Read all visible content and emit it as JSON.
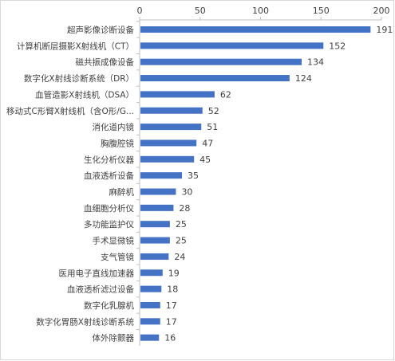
{
  "chart_data": {
    "type": "bar",
    "orientation": "horizontal",
    "title": "",
    "xlabel": "",
    "ylabel": "",
    "xlim": [
      0,
      200
    ],
    "x_ticks": [
      0,
      50,
      100,
      150,
      200
    ],
    "x_axis_position": "top",
    "grid": false,
    "legend": "none",
    "bar_color": "#4472c4",
    "data_labels": true,
    "categories": [
      "超声影像诊断设备",
      "计算机断层摄影X射线机（CT）",
      "磁共振成像设备",
      "数字化X射线诊断系统（DR）",
      "血管造影X射线机（DSA）",
      "移动式C形臂X射线机（含O形/G...",
      "消化道内镜",
      "胸腹腔镜",
      "生化分析仪器",
      "血液透析设备",
      "麻醉机",
      "血细胞分析仪",
      "多功能监护仪",
      "手术显微镜",
      "支气管镜",
      "医用电子直线加速器",
      "血液透析滤过设备",
      "数字化乳腺机",
      "数字化胃肠X射线诊断系统",
      "体外除颤器"
    ],
    "values": [
      191,
      152,
      134,
      124,
      62,
      52,
      51,
      47,
      45,
      35,
      30,
      28,
      25,
      25,
      24,
      19,
      18,
      17,
      17,
      16
    ]
  }
}
